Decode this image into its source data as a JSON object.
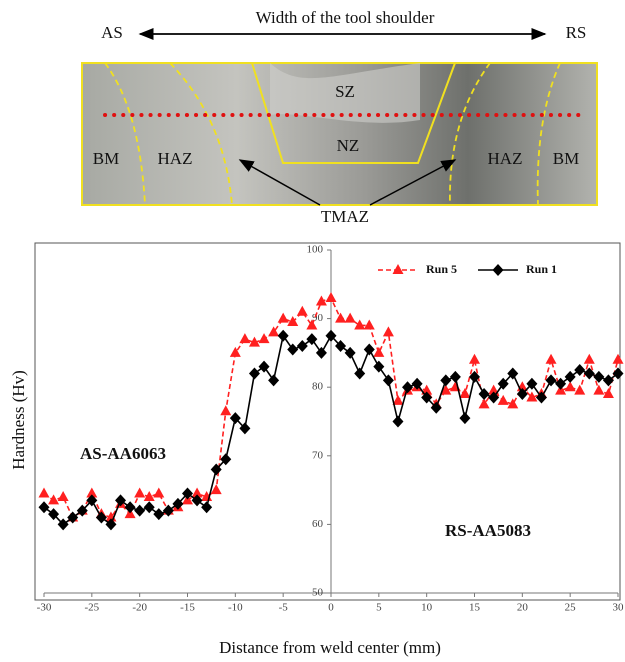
{
  "macrograph": {
    "left_side": "AS",
    "width_label": "Width of the tool shoulder",
    "right_side": "RS",
    "zones": [
      "SZ",
      "NZ",
      "BM",
      "HAZ",
      "HAZ",
      "BM"
    ],
    "tmaz": "TMAZ"
  },
  "chart_data": {
    "type": "line",
    "xlabel": "Distance from weld center (mm)",
    "ylabel": "Hardness (Hv)",
    "annotations": [
      "AS-AA6063",
      "RS-AA5083"
    ],
    "x": [
      -30,
      -29,
      -28,
      -27,
      -26,
      -25,
      -24,
      -23,
      -22,
      -21,
      -20,
      -19,
      -18,
      -17,
      -16,
      -15,
      -14,
      -13,
      -12,
      -11,
      -10,
      -9,
      -8,
      -7,
      -6,
      -5,
      -4,
      -3,
      -2,
      -1,
      0,
      1,
      2,
      3,
      4,
      5,
      6,
      7,
      8,
      9,
      10,
      11,
      12,
      13,
      14,
      15,
      16,
      17,
      18,
      19,
      20,
      21,
      22,
      23,
      24,
      25,
      26,
      27,
      28,
      29,
      30
    ],
    "series": [
      {
        "name": "Run 5",
        "color": "#ff2020",
        "linestyle": "dashed",
        "marker": "triangle",
        "values": [
          64.5,
          63.5,
          64,
          61,
          62,
          64.5,
          61.5,
          61,
          63,
          61.5,
          64.5,
          64,
          64.5,
          62,
          62.5,
          63.5,
          64.5,
          64,
          65,
          76.5,
          85,
          87,
          86.5,
          87,
          88,
          90,
          89.5,
          91,
          89,
          92.5,
          93,
          90,
          90,
          89,
          89,
          85,
          88,
          78,
          79.5,
          80,
          79.5,
          77.5,
          79.5,
          80,
          79,
          84,
          77.5,
          79.5,
          78,
          77.5,
          80,
          78.5,
          79,
          84,
          79.5,
          80,
          79.5,
          84,
          79.5,
          79,
          84
        ]
      },
      {
        "name": "Run 1",
        "color": "#000000",
        "linestyle": "solid",
        "marker": "diamond",
        "values": [
          62.5,
          61.5,
          60,
          61,
          62,
          63.5,
          61,
          60,
          63.5,
          62.5,
          62,
          62.5,
          61.5,
          62,
          63,
          64.5,
          63.5,
          62.5,
          68,
          69.5,
          75.5,
          74,
          82,
          83,
          81,
          87.5,
          85.5,
          86,
          87,
          85,
          87.5,
          86,
          85,
          82,
          85.5,
          83,
          81,
          75,
          80,
          80.5,
          78.5,
          77,
          81,
          81.5,
          75.5,
          81.5,
          79,
          78.5,
          80.5,
          82,
          79,
          80.5,
          78.5,
          81,
          80.5,
          81.5,
          82.5,
          82,
          81.5,
          81,
          82
        ]
      }
    ],
    "xlim": [
      -30,
      30
    ],
    "xticks": [
      -30,
      -25,
      -20,
      -15,
      -10,
      -5,
      0,
      5,
      10,
      15,
      20,
      25,
      30
    ],
    "ylim": [
      50,
      100
    ],
    "yticks": [
      50,
      60,
      70,
      80,
      90,
      100
    ],
    "grid": false,
    "legend": "upper right"
  }
}
